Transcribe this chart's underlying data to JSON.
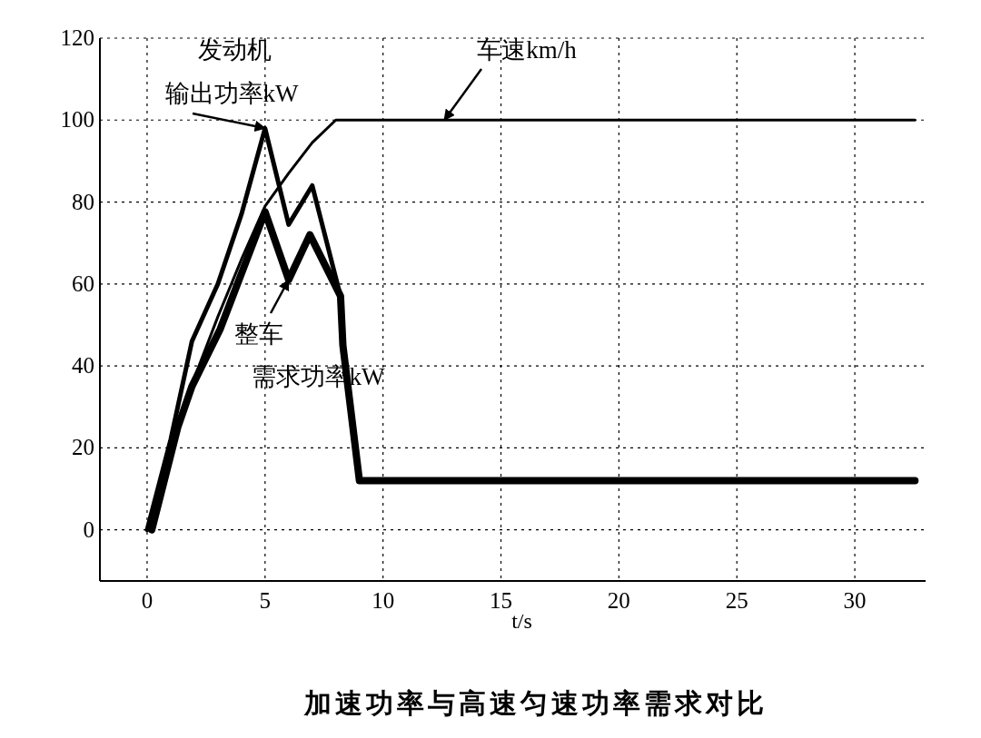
{
  "chart_data": {
    "type": "line",
    "title": "加速功率与高速匀速功率需求对比",
    "xlabel": "t/s",
    "xlim": [
      -2,
      33
    ],
    "ylim": [
      -12.5,
      120
    ],
    "xticks": [
      0,
      5,
      10,
      15,
      20,
      25,
      30
    ],
    "yticks": [
      0,
      20,
      40,
      60,
      80,
      100,
      120
    ],
    "grid": true,
    "line_style": "solid",
    "marker": "none",
    "series": [
      {
        "color": "#000000",
        "x": [
          0,
          1,
          2,
          3,
          4,
          5,
          6,
          7,
          8,
          32.55
        ],
        "values": [
          0,
          18,
          37,
          52,
          66,
          79,
          87,
          94.5,
          100,
          100
        ]
      },
      {
        "color": "#000000",
        "x": [
          0,
          1,
          1.9,
          3,
          4,
          5,
          6,
          7,
          8.2
        ],
        "values": [
          0,
          22,
          46,
          60,
          77,
          98,
          74.5,
          84,
          57
        ]
      },
      {
        "color": "#000000",
        "x": [
          0.2,
          1.3,
          1.9,
          3.1,
          5,
          6,
          6.9,
          8.2,
          8.3,
          9,
          32.55
        ],
        "values": [
          0,
          25,
          35,
          49,
          77.6,
          61,
          72,
          57,
          45,
          12,
          12
        ]
      }
    ],
    "annotations": [
      "发动机",
      {
        "text": "输出功率kW",
        "x": 5,
        "y": 98
      },
      {
        "text": "车速km/h",
        "x": 12.6,
        "y": 100
      },
      {
        "text": "整车",
        "x": 6,
        "y": 61
      },
      "需求功率kW"
    ]
  }
}
